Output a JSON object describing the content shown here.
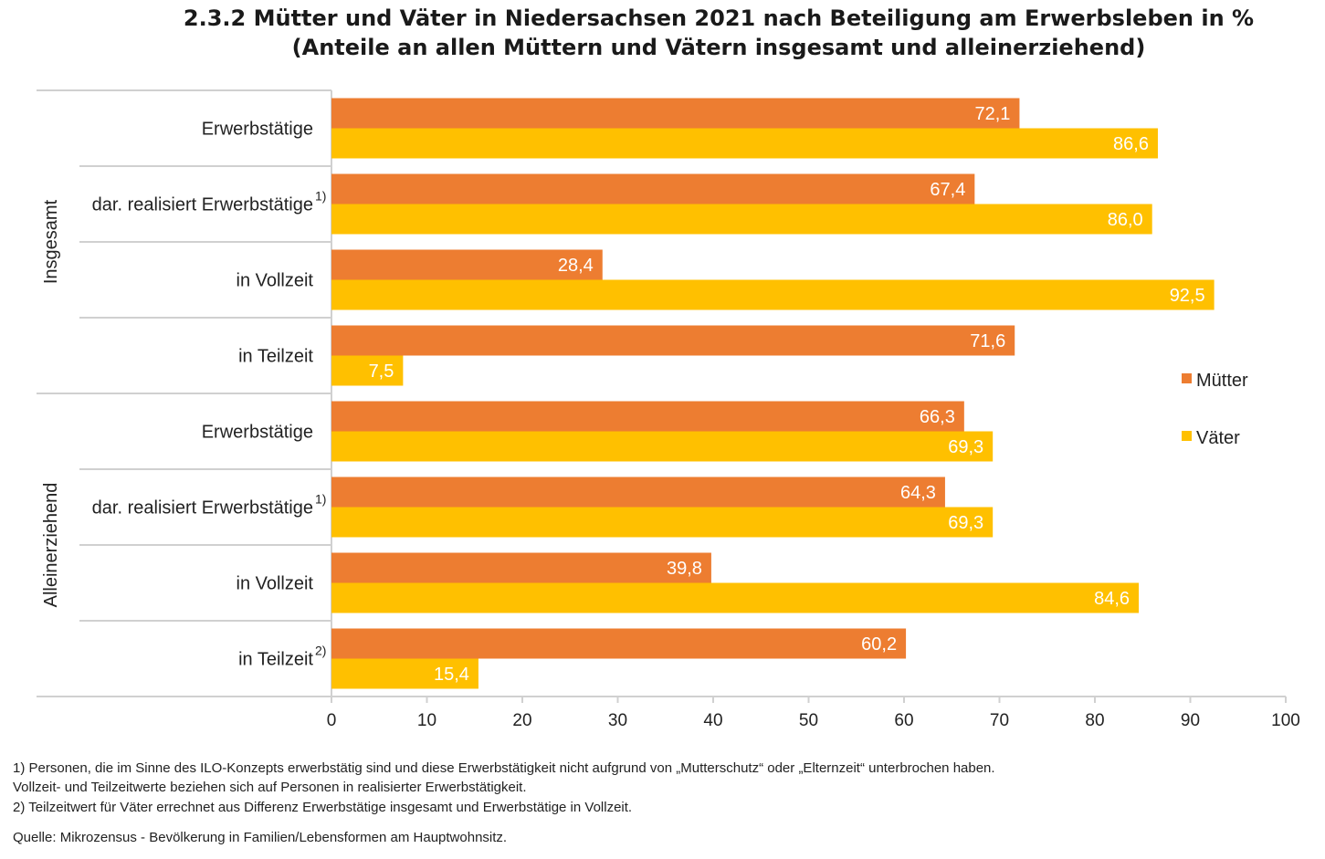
{
  "chart_data": {
    "type": "bar",
    "orientation": "horizontal",
    "title": "2.3.2 Mütter und Väter in Niedersachsen 2021 nach Beteiligung am Erwerbsleben in %",
    "subtitle": "(Anteile an allen Müttern und Vätern insgesamt und alleinerziehend)",
    "groups": [
      {
        "label": "Insgesamt",
        "categories": [
          {
            "label": "Erwerbstätige",
            "sup": ""
          },
          {
            "label": "dar. realisiert Erwerbstätige",
            "sup": "1)"
          },
          {
            "label": "in Vollzeit",
            "sup": ""
          },
          {
            "label": "in Teilzeit",
            "sup": ""
          }
        ]
      },
      {
        "label": "Alleinerziehend",
        "categories": [
          {
            "label": "Erwerbstätige",
            "sup": ""
          },
          {
            "label": "dar. realisiert Erwerbstätige",
            "sup": "1)"
          },
          {
            "label": "in Vollzeit",
            "sup": ""
          },
          {
            "label": "in Teilzeit",
            "sup": "2)"
          }
        ]
      }
    ],
    "series": [
      {
        "name": "Mütter",
        "color": "#ed7d31",
        "values": [
          72.1,
          67.4,
          28.4,
          71.6,
          66.3,
          64.3,
          39.8,
          60.2
        ],
        "labels": [
          "72,1",
          "67,4",
          "28,4",
          "71,6",
          "66,3",
          "64,3",
          "39,8",
          "60,2"
        ]
      },
      {
        "name": "Väter",
        "color": "#ffc000",
        "values": [
          86.6,
          86.0,
          92.5,
          7.5,
          69.3,
          69.3,
          84.6,
          15.4
        ],
        "labels": [
          "86,6",
          "86,0",
          "92,5",
          "7,5",
          "69,3",
          "69,3",
          "84,6",
          "15,4"
        ]
      }
    ],
    "xlim": [
      0,
      100
    ],
    "xticks": [
      0,
      10,
      20,
      30,
      40,
      50,
      60,
      70,
      80,
      90,
      100
    ],
    "grid": false,
    "legend": "right"
  },
  "footnotes": {
    "note1_line1": "1) Personen, die im Sinne des ILO-Konzepts erwerbstätig sind und diese Erwerbstätigkeit nicht aufgrund von „Mutterschutz“ oder „Elternzeit“ unterbrochen haben.",
    "note1_line2": "Vollzeit- und Teilzeitwerte beziehen sich auf Personen in realisierter Erwerbstätigkeit.",
    "note2": "2) Teilzeitwert für Väter errechnet aus Differenz Erwerbstätige insgesamt und Erwerbstätige in Vollzeit.",
    "source": "Quelle: Mikrozensus - Bevölkerung in Familien/Lebensformen am Hauptwohnsitz."
  }
}
